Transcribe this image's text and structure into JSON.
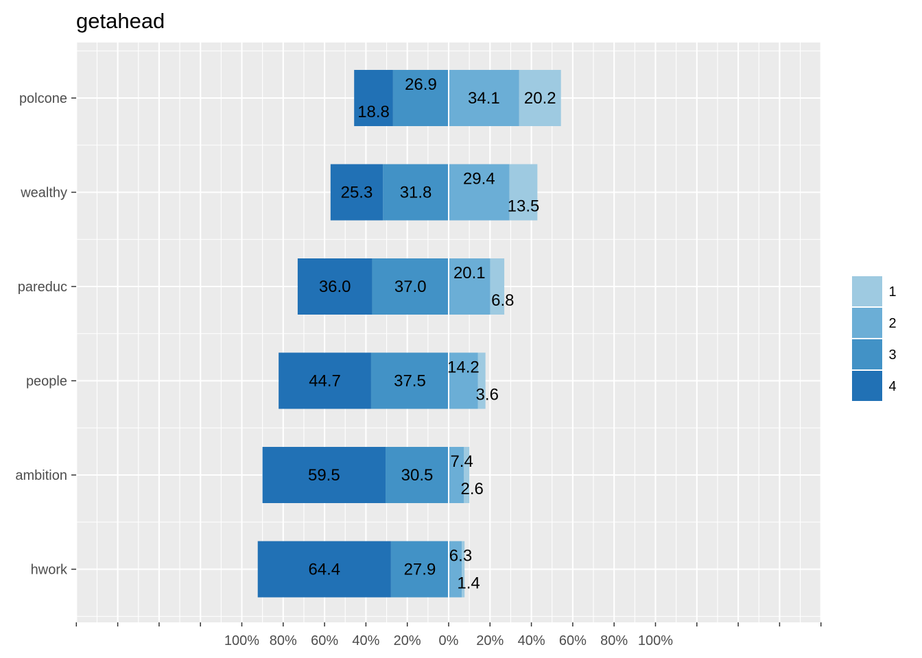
{
  "chart_data": {
    "type": "bar",
    "orientation": "horizontal",
    "stacking": "diverging",
    "title": "getahead",
    "xlabel": "",
    "ylabel": "",
    "categories": [
      "polcone",
      "wealthy",
      "pareduc",
      "people",
      "ambition",
      "hwork"
    ],
    "series": [
      {
        "name": "1",
        "side": "positive",
        "color": "#9ECAE1",
        "values": [
          20.2,
          13.5,
          6.8,
          3.6,
          2.6,
          1.4
        ]
      },
      {
        "name": "2",
        "side": "positive",
        "color": "#6BAED6",
        "values": [
          34.1,
          29.4,
          20.1,
          14.2,
          7.4,
          6.3
        ]
      },
      {
        "name": "3",
        "side": "negative",
        "color": "#4292C6",
        "values": [
          26.9,
          31.8,
          37.0,
          37.5,
          30.5,
          27.9
        ]
      },
      {
        "name": "4",
        "side": "negative",
        "color": "#2171B5",
        "values": [
          18.8,
          25.3,
          36.0,
          44.7,
          59.5,
          64.4
        ]
      }
    ],
    "x_tick_labels": [
      "100%",
      "80%",
      "60%",
      "40%",
      "20%",
      "0%",
      "20%",
      "40%",
      "60%",
      "80%",
      "100%"
    ],
    "x_tick_values": [
      -100,
      -80,
      -60,
      -40,
      -20,
      0,
      20,
      40,
      60,
      80,
      100
    ],
    "xlim": [
      -180,
      180
    ],
    "grid": true,
    "legend": {
      "placement": "right",
      "entries": [
        "1",
        "2",
        "3",
        "4"
      ]
    }
  }
}
